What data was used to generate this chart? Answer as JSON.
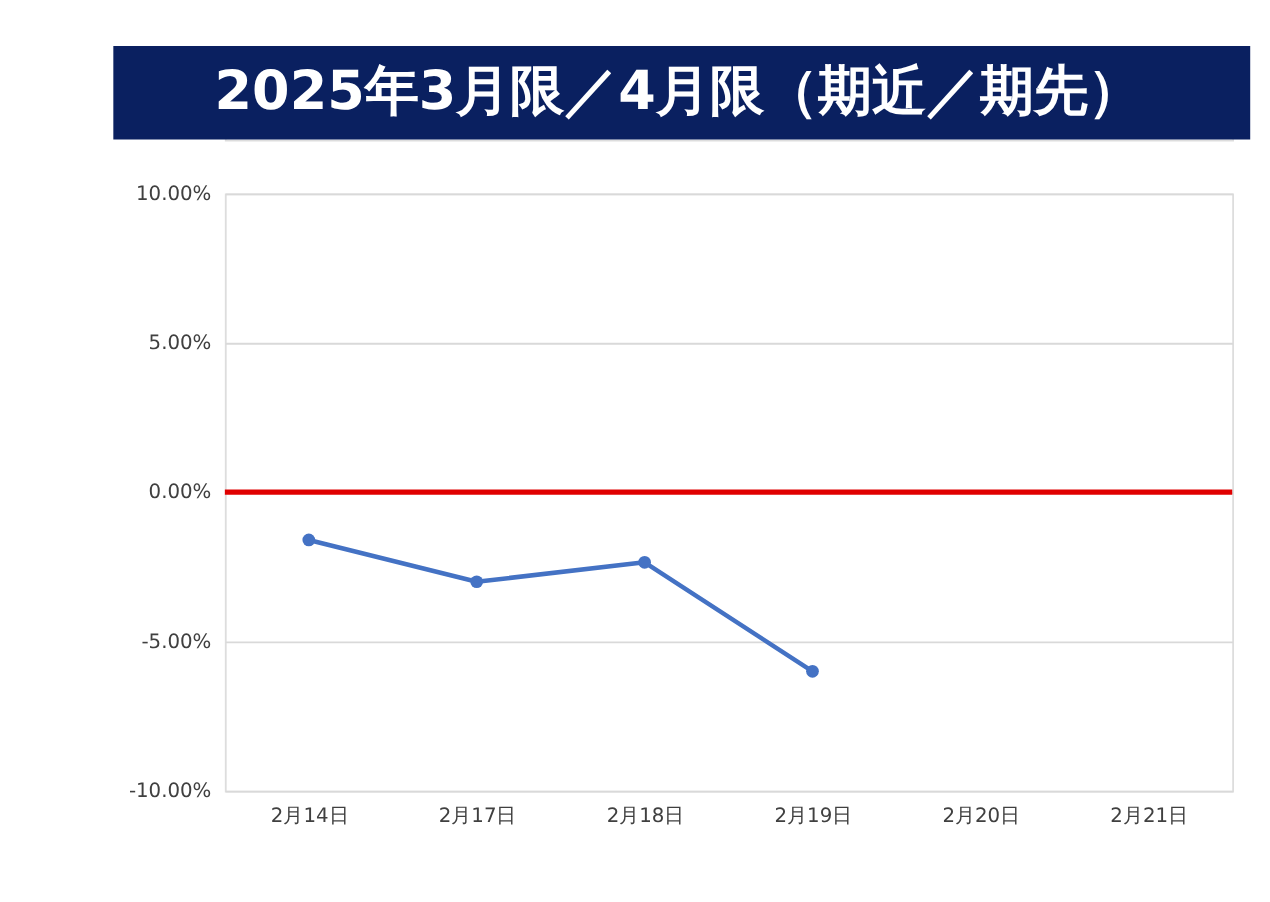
{
  "chart_data": {
    "type": "line",
    "title": "2025年3月限／4月限（期近／期先）",
    "categories": [
      "2月14日",
      "2月17日",
      "2月18日",
      "2月19日",
      "2月20日",
      "2月21日"
    ],
    "series": [
      {
        "color": "#4472c4",
        "values": [
          -1.6,
          -3.0,
          -2.35,
          -6.0,
          null,
          null
        ]
      }
    ],
    "ylim": [
      -10,
      10
    ],
    "yticks": [
      {
        "value": -10,
        "label": "-10.00%"
      },
      {
        "value": -5,
        "label": "-5.00%"
      },
      {
        "value": 0,
        "label": "0.00%"
      },
      {
        "value": 5,
        "label": "5.00%"
      },
      {
        "value": 10,
        "label": "10.00%"
      }
    ],
    "ref_lines": [
      {
        "axis": "y",
        "value": 0,
        "color": "#e00000"
      }
    ],
    "grid": "y",
    "marker": "circle",
    "line_style": "solid"
  }
}
